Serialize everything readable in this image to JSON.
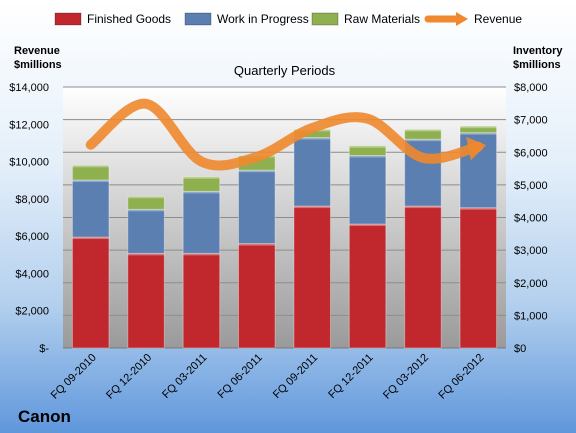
{
  "chart_data": {
    "type": "bar",
    "stacked": true,
    "title": "Quarterly Periods",
    "categories": [
      "FQ 09-2010",
      "FQ 12-2010",
      "FQ 03-2011",
      "FQ 06-2011",
      "FQ 09-2011",
      "FQ 12-2011",
      "FQ 03-2012",
      "FQ 06-2012"
    ],
    "series": [
      {
        "name": "Finished Goods",
        "axis": "right",
        "color": "#c0282d",
        "values": [
          3400,
          2900,
          2900,
          3200,
          4350,
          3800,
          4350,
          4300
        ]
      },
      {
        "name": "Work in Progress",
        "axis": "right",
        "color": "#5a7fb0",
        "values": [
          1750,
          1350,
          1900,
          2250,
          2100,
          2100,
          2050,
          2300
        ]
      },
      {
        "name": "Raw Materials",
        "axis": "right",
        "color": "#8fb04f",
        "values": [
          450,
          400,
          450,
          450,
          250,
          300,
          300,
          200
        ]
      }
    ],
    "line_series": {
      "name": "Revenue",
      "axis": "left",
      "color": "#f0882d",
      "values": [
        10900,
        13100,
        10000,
        10250,
        11800,
        12300,
        10200,
        10800
      ]
    },
    "left_axis": {
      "title_lines": [
        "Revenue",
        "$millions"
      ],
      "ylim": [
        0,
        14000
      ],
      "ticks": [
        0,
        2000,
        4000,
        6000,
        8000,
        10000,
        12000,
        14000
      ],
      "tick_labels": [
        "$-",
        "$2,000",
        "$4,000",
        "$6,000",
        "$8,000",
        "$10,000",
        "$12,000",
        "$14,000"
      ]
    },
    "right_axis": {
      "title_lines": [
        "Inventory",
        "$millions"
      ],
      "ylim": [
        0,
        8000
      ],
      "ticks": [
        0,
        1000,
        2000,
        3000,
        4000,
        5000,
        6000,
        7000,
        8000
      ],
      "tick_labels": [
        "$0",
        "$1,000",
        "$2,000",
        "$3,000",
        "$4,000",
        "$5,000",
        "$6,000",
        "$7,000",
        "$8,000"
      ]
    },
    "grid": true,
    "legend_position": "top"
  },
  "legend": [
    {
      "label": "Finished Goods",
      "color": "#c0282d",
      "kind": "bar"
    },
    {
      "label": "Work in Progress",
      "color": "#5a7fb0",
      "kind": "bar"
    },
    {
      "label": "Raw Materials",
      "color": "#8fb04f",
      "kind": "bar"
    },
    {
      "label": "Revenue",
      "color": "#f0882d",
      "kind": "line"
    }
  ],
  "company": "Canon"
}
